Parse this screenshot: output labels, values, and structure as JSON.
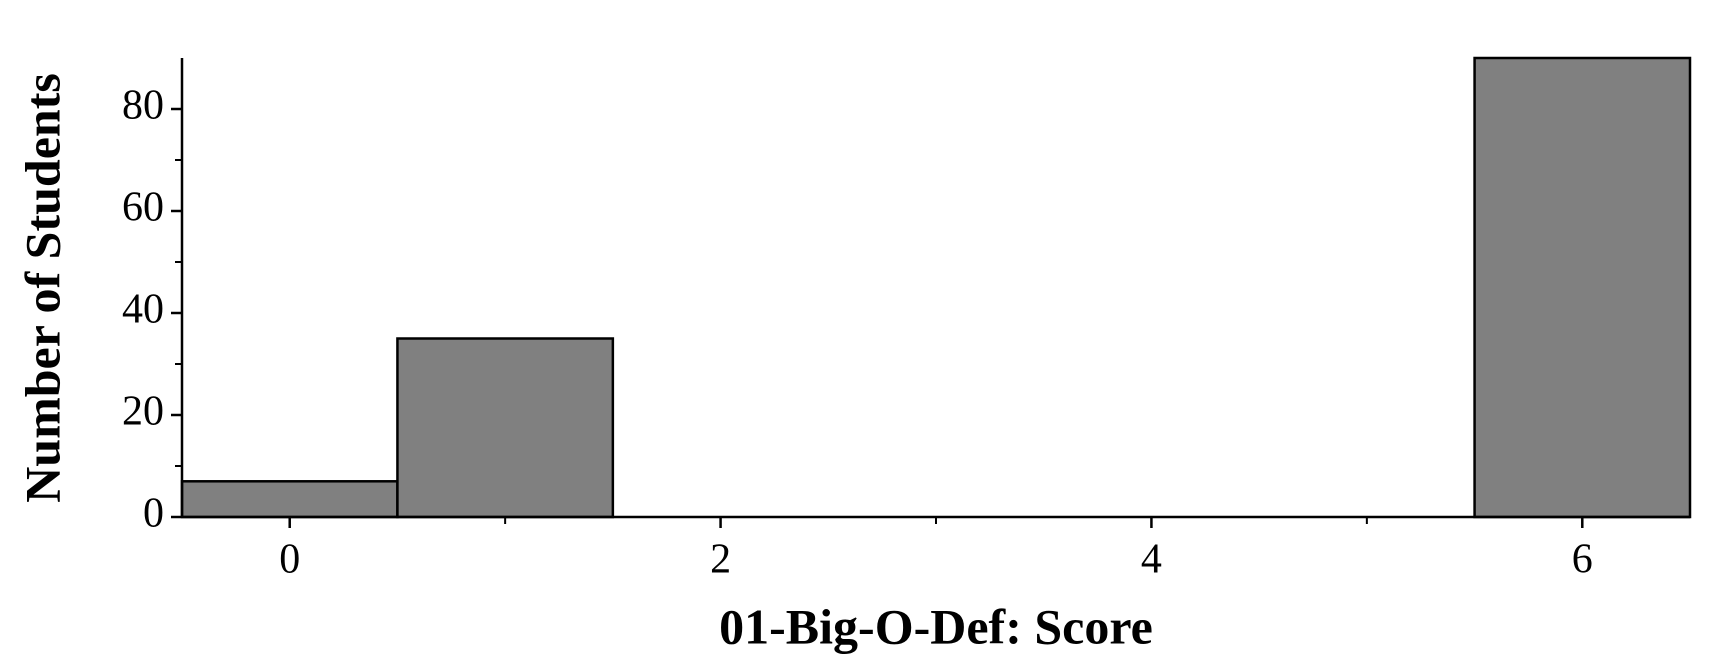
{
  "chart_data": {
    "type": "histogram",
    "xlabel": "01-Big-O-Def: Score",
    "ylabel": "Number of Students",
    "bins": [
      -0.5,
      0.5,
      1.5,
      2.5,
      3.5,
      4.5,
      5.5,
      6.5
    ],
    "values": [
      7,
      35,
      0,
      0,
      0,
      0,
      90
    ],
    "color": "#808080",
    "xlim": [
      -0.5,
      6.5
    ],
    "xticks": [
      0,
      2,
      4,
      6
    ],
    "xminorticks": [
      1,
      3,
      5
    ],
    "ylim": [
      0,
      90
    ],
    "yticks": [
      0,
      20,
      40,
      60,
      80
    ],
    "yminorticks": [
      10,
      30,
      50,
      70
    ]
  }
}
